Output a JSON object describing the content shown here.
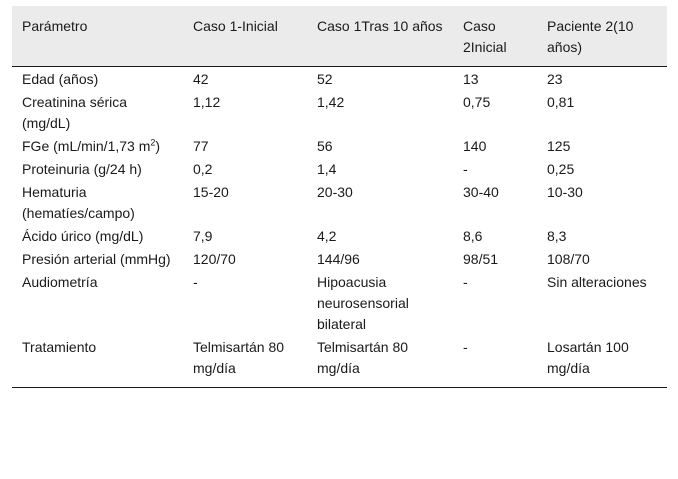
{
  "table": {
    "headers": [
      "Parámetro",
      "Caso 1-Inicial",
      "Caso 1Tras 10 años",
      "Caso 2Inicial",
      "Paciente 2(10 años)"
    ],
    "rows": [
      [
        "Edad (años)",
        "42",
        "52",
        "13",
        "23"
      ],
      [
        "Creatinina sérica (mg/dL)",
        "1,12",
        "1,42",
        "0,75",
        "0,81"
      ],
      [
        "FGe (mL/min/1,73 m2)",
        "77",
        "56",
        "140",
        "125"
      ],
      [
        "Proteinuria (g/24 h)",
        "0,2",
        "1,4",
        "-",
        "0,25"
      ],
      [
        "Hematuria (hematíes/campo)",
        "15-20",
        "20-30",
        "30-40",
        "10-30"
      ],
      [
        "Ácido úrico (mg/dL)",
        "7,9",
        "4,2",
        "8,6",
        "8,3"
      ],
      [
        "Presión arterial (mmHg)",
        "120/70",
        "144/96",
        "98/51",
        "108/70"
      ],
      [
        "Audiometría",
        "-",
        "Hipoacusia neurosensorial bilateral",
        "-",
        "Sin alteraciones"
      ],
      [
        "Tratamiento",
        "Telmisartán 80 mg/día",
        "Telmisartán 80 mg/día",
        "-",
        "Losartán 100 mg/día"
      ]
    ],
    "fge_label_parts": {
      "before": "FGe (mL/min/1,73 m",
      "sup": "2",
      "after": ")"
    }
  }
}
